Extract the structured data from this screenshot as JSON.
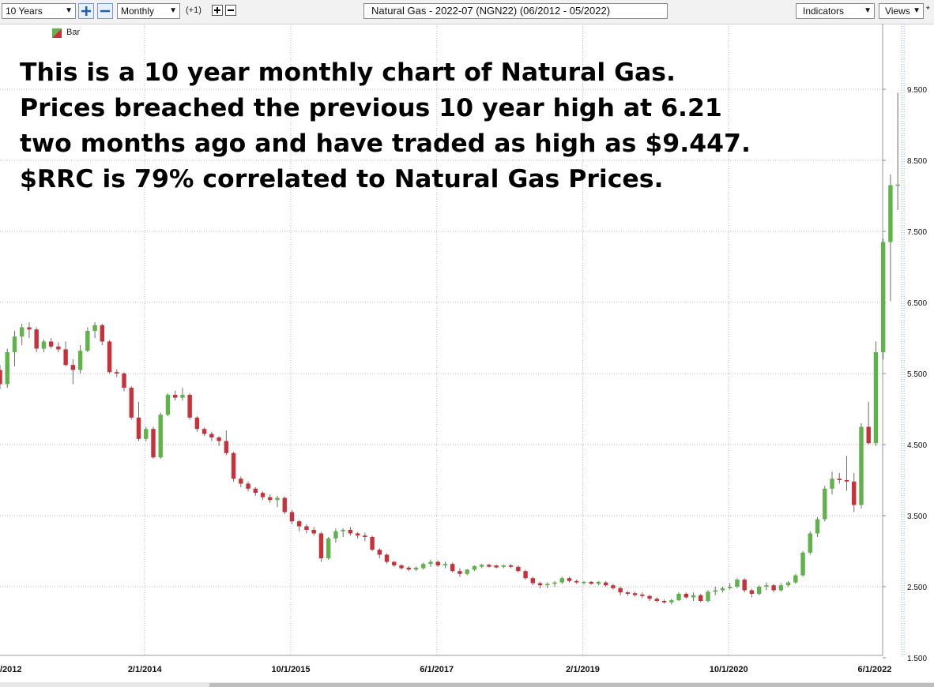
{
  "toolbar": {
    "period": "10 Years",
    "interval": "Monthly",
    "offset": "(+1)",
    "title": "Natural Gas - 2022-07 (NGN22) (06/2012 - 05/2022)",
    "indicators": "Indicators",
    "views": "Views",
    "star": "*"
  },
  "legend": {
    "label": "Bar",
    "up_color": "#5fb34a",
    "down_color": "#c8313a"
  },
  "annotation": {
    "lines": [
      "This is a 10 year monthly chart of Natural Gas.",
      "Prices breached the previous 10 year high at 6.21",
      "two months ago and have traded as high as $9.447.",
      "$RRC is 79% correlated to Natural Gas Prices."
    ]
  },
  "chart_data": {
    "type": "candlestick",
    "title": "Natural Gas - 2022-07 (NGN22) (06/2012 - 05/2022)",
    "interval": "Monthly",
    "y_ticks": [
      "9.500",
      "8.500",
      "7.500",
      "6.500",
      "5.500",
      "4.500",
      "3.500",
      "2.500",
      "1.500"
    ],
    "y_tick_values": [
      9.5,
      8.5,
      7.5,
      6.5,
      5.5,
      4.5,
      3.5,
      2.5,
      1.5
    ],
    "ylim": [
      1.5,
      9.9
    ],
    "x_ticks": [
      "/2012",
      "2/1/2014",
      "10/1/2015",
      "6/1/2017",
      "2/1/2019",
      "10/1/2020",
      "6/1/2022"
    ],
    "x_tick_index": [
      0,
      20,
      40,
      60,
      80,
      100,
      120
    ],
    "grid": true,
    "colors": {
      "up": "#5fb34a",
      "down": "#c8313a",
      "grid": "#b8b8b8",
      "last_line": "#7fa8d4"
    },
    "ohlc": [
      [
        5.55,
        5.62,
        5.28,
        5.35
      ],
      [
        5.35,
        5.85,
        5.3,
        5.8
      ],
      [
        5.8,
        6.1,
        5.6,
        6.02
      ],
      [
        6.02,
        6.2,
        5.9,
        6.15
      ],
      [
        6.15,
        6.22,
        6.0,
        6.12
      ],
      [
        6.12,
        6.15,
        5.8,
        5.85
      ],
      [
        5.85,
        5.98,
        5.8,
        5.95
      ],
      [
        5.95,
        6.0,
        5.85,
        5.88
      ],
      [
        5.88,
        5.94,
        5.8,
        5.84
      ],
      [
        5.84,
        5.95,
        5.6,
        5.62
      ],
      [
        5.62,
        5.7,
        5.35,
        5.55
      ],
      [
        5.55,
        5.9,
        5.5,
        5.82
      ],
      [
        5.82,
        6.15,
        5.8,
        6.1
      ],
      [
        6.1,
        6.22,
        6.0,
        6.18
      ],
      [
        6.18,
        6.2,
        5.9,
        5.95
      ],
      [
        5.95,
        5.97,
        5.5,
        5.52
      ],
      [
        5.52,
        5.56,
        5.45,
        5.5
      ],
      [
        5.5,
        5.52,
        5.25,
        5.3
      ],
      [
        5.3,
        5.32,
        4.85,
        4.88
      ],
      [
        4.88,
        5.1,
        4.55,
        4.58
      ],
      [
        4.58,
        4.75,
        4.55,
        4.72
      ],
      [
        4.72,
        4.75,
        4.3,
        4.32
      ],
      [
        4.32,
        4.95,
        4.3,
        4.92
      ],
      [
        4.92,
        5.22,
        4.9,
        5.2
      ],
      [
        5.2,
        5.26,
        5.12,
        5.16
      ],
      [
        5.16,
        5.3,
        5.12,
        5.2
      ],
      [
        5.2,
        5.22,
        4.85,
        4.88
      ],
      [
        4.88,
        4.9,
        4.68,
        4.72
      ],
      [
        4.72,
        4.74,
        4.62,
        4.65
      ],
      [
        4.65,
        4.68,
        4.55,
        4.6
      ],
      [
        4.6,
        4.62,
        4.48,
        4.55
      ],
      [
        4.55,
        4.7,
        4.35,
        4.38
      ],
      [
        4.38,
        4.4,
        3.98,
        4.02
      ],
      [
        4.02,
        4.05,
        3.9,
        3.95
      ],
      [
        3.95,
        3.98,
        3.84,
        3.88
      ],
      [
        3.88,
        3.9,
        3.78,
        3.82
      ],
      [
        3.82,
        3.84,
        3.72,
        3.76
      ],
      [
        3.76,
        3.8,
        3.68,
        3.72
      ],
      [
        3.72,
        3.78,
        3.62,
        3.75
      ],
      [
        3.75,
        3.77,
        3.52,
        3.55
      ],
      [
        3.55,
        3.58,
        3.38,
        3.42
      ],
      [
        3.42,
        3.44,
        3.28,
        3.35
      ],
      [
        3.35,
        3.38,
        3.25,
        3.3
      ],
      [
        3.3,
        3.34,
        3.22,
        3.25
      ],
      [
        3.25,
        3.27,
        2.85,
        2.9
      ],
      [
        2.9,
        3.2,
        2.88,
        3.18
      ],
      [
        3.18,
        3.32,
        3.12,
        3.28
      ],
      [
        3.28,
        3.32,
        3.2,
        3.3
      ],
      [
        3.3,
        3.34,
        3.22,
        3.25
      ],
      [
        3.25,
        3.27,
        3.18,
        3.22
      ],
      [
        3.22,
        3.26,
        3.14,
        3.2
      ],
      [
        3.2,
        3.22,
        3.0,
        3.02
      ],
      [
        3.02,
        3.04,
        2.9,
        2.95
      ],
      [
        2.95,
        2.97,
        2.82,
        2.85
      ],
      [
        2.85,
        2.86,
        2.78,
        2.8
      ],
      [
        2.8,
        2.82,
        2.74,
        2.76
      ],
      [
        2.76,
        2.79,
        2.72,
        2.75
      ],
      [
        2.75,
        2.78,
        2.72,
        2.76
      ],
      [
        2.76,
        2.84,
        2.74,
        2.82
      ],
      [
        2.82,
        2.88,
        2.78,
        2.85
      ],
      [
        2.85,
        2.87,
        2.78,
        2.8
      ],
      [
        2.8,
        2.85,
        2.76,
        2.82
      ],
      [
        2.82,
        2.84,
        2.7,
        2.72
      ],
      [
        2.72,
        2.76,
        2.64,
        2.68
      ],
      [
        2.68,
        2.75,
        2.66,
        2.74
      ],
      [
        2.74,
        2.8,
        2.72,
        2.79
      ],
      [
        2.79,
        2.82,
        2.76,
        2.8
      ],
      [
        2.8,
        2.82,
        2.77,
        2.79
      ],
      [
        2.79,
        2.81,
        2.76,
        2.78
      ],
      [
        2.78,
        2.81,
        2.76,
        2.8
      ],
      [
        2.8,
        2.82,
        2.76,
        2.78
      ],
      [
        2.78,
        2.8,
        2.7,
        2.72
      ],
      [
        2.72,
        2.74,
        2.6,
        2.62
      ],
      [
        2.62,
        2.64,
        2.52,
        2.55
      ],
      [
        2.55,
        2.57,
        2.48,
        2.52
      ],
      [
        2.52,
        2.56,
        2.48,
        2.54
      ],
      [
        2.54,
        2.58,
        2.5,
        2.56
      ],
      [
        2.56,
        2.64,
        2.54,
        2.62
      ],
      [
        2.62,
        2.64,
        2.56,
        2.58
      ],
      [
        2.58,
        2.6,
        2.54,
        2.56
      ],
      [
        2.56,
        2.58,
        2.53,
        2.56
      ],
      [
        2.56,
        2.58,
        2.53,
        2.55
      ],
      [
        2.55,
        2.58,
        2.52,
        2.56
      ],
      [
        2.56,
        2.58,
        2.5,
        2.52
      ],
      [
        2.52,
        2.54,
        2.46,
        2.48
      ],
      [
        2.48,
        2.5,
        2.38,
        2.42
      ],
      [
        2.42,
        2.44,
        2.37,
        2.4
      ],
      [
        2.4,
        2.43,
        2.36,
        2.39
      ],
      [
        2.39,
        2.42,
        2.34,
        2.37
      ],
      [
        2.37,
        2.39,
        2.3,
        2.33
      ],
      [
        2.33,
        2.35,
        2.28,
        2.3
      ],
      [
        2.3,
        2.32,
        2.26,
        2.28
      ],
      [
        2.28,
        2.33,
        2.25,
        2.31
      ],
      [
        2.31,
        2.42,
        2.3,
        2.4
      ],
      [
        2.4,
        2.42,
        2.33,
        2.35
      ],
      [
        2.35,
        2.42,
        2.3,
        2.38
      ],
      [
        2.38,
        2.4,
        2.28,
        2.3
      ],
      [
        2.3,
        2.45,
        2.28,
        2.43
      ],
      [
        2.43,
        2.5,
        2.38,
        2.45
      ],
      [
        2.45,
        2.5,
        2.42,
        2.48
      ],
      [
        2.48,
        2.55,
        2.46,
        2.5
      ],
      [
        2.5,
        2.62,
        2.48,
        2.6
      ],
      [
        2.6,
        2.62,
        2.42,
        2.45
      ],
      [
        2.45,
        2.47,
        2.35,
        2.4
      ],
      [
        2.4,
        2.52,
        2.38,
        2.5
      ],
      [
        2.5,
        2.56,
        2.45,
        2.52
      ],
      [
        2.52,
        2.54,
        2.42,
        2.45
      ],
      [
        2.45,
        2.55,
        2.43,
        2.52
      ],
      [
        2.52,
        2.58,
        2.5,
        2.56
      ],
      [
        2.56,
        2.68,
        2.54,
        2.66
      ],
      [
        2.66,
        3.0,
        2.64,
        2.98
      ],
      [
        2.98,
        3.28,
        2.95,
        3.25
      ],
      [
        3.25,
        3.48,
        3.2,
        3.45
      ],
      [
        3.45,
        3.92,
        3.42,
        3.88
      ],
      [
        3.88,
        4.12,
        3.8,
        4.02
      ],
      [
        4.02,
        4.1,
        3.95,
        4.0
      ],
      [
        4.0,
        4.34,
        3.85,
        3.98
      ],
      [
        3.98,
        4.1,
        3.55,
        3.65
      ],
      [
        3.65,
        4.8,
        3.6,
        4.75
      ],
      [
        4.75,
        5.1,
        4.5,
        4.52
      ],
      [
        4.52,
        5.95,
        4.48,
        5.8
      ],
      [
        5.8,
        7.4,
        5.7,
        7.35
      ],
      [
        7.35,
        8.3,
        6.52,
        8.15
      ],
      [
        8.15,
        9.45,
        7.8,
        8.15
      ]
    ]
  }
}
